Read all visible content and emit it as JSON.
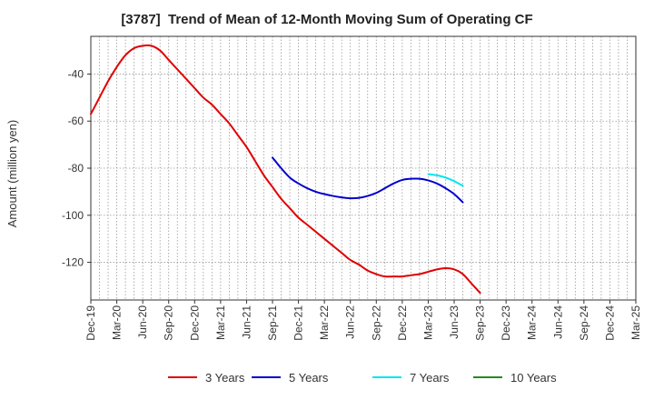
{
  "chart_data": {
    "type": "line",
    "title": "[3787]  Trend of Mean of 12-Month Moving Sum of Operating CF",
    "xlabel": "",
    "ylabel": "Amount (million yen)",
    "x_tick_labels": [
      "Dec-19",
      "Mar-20",
      "Jun-20",
      "Sep-20",
      "Dec-20",
      "Mar-21",
      "Jun-21",
      "Sep-21",
      "Dec-21",
      "Mar-22",
      "Jun-22",
      "Sep-22",
      "Dec-22",
      "Mar-23",
      "Jun-23",
      "Sep-23",
      "Dec-23",
      "Mar-24",
      "Jun-24",
      "Sep-24",
      "Dec-24",
      "Mar-25"
    ],
    "y_ticks": [
      -40,
      -60,
      -80,
      -100,
      -120
    ],
    "ylim": [
      -136,
      -24
    ],
    "grid": true,
    "legend_position": "bottom",
    "series": [
      {
        "name": "3 Years",
        "color": "#e00000",
        "start_index": 0,
        "values": [
          -57,
          -50,
          -43,
          -37,
          -32,
          -29,
          -28,
          -28,
          -30,
          -34,
          -38,
          -42,
          -46,
          -50,
          -53,
          -57,
          -61,
          -66,
          -71,
          -77,
          -83,
          -88,
          -93,
          -97,
          -101,
          -104,
          -107,
          -110,
          -113,
          -116,
          -119,
          -121,
          -123.5,
          -125,
          -126,
          -126,
          -126,
          -125.5,
          -125,
          -124,
          -123,
          -122.5,
          -123,
          -125,
          -129,
          -133
        ]
      },
      {
        "name": "5 Years",
        "color": "#0000cc",
        "start_index": 21,
        "values": [
          -75.5,
          -80,
          -84,
          -86.5,
          -88.5,
          -90,
          -91,
          -91.8,
          -92.4,
          -92.8,
          -92.6,
          -91.8,
          -90.5,
          -88.5,
          -86.5,
          -85,
          -84.5,
          -84.5,
          -85.2,
          -86.5,
          -88.5,
          -91,
          -94.5
        ]
      },
      {
        "name": "7 Years",
        "color": "#00e5ee",
        "start_index": 39,
        "values": [
          -82.5,
          -83,
          -84,
          -85.5,
          -87.5
        ]
      },
      {
        "name": "10 Years",
        "color": "#228b22",
        "start_index": 0,
        "values": []
      }
    ]
  }
}
